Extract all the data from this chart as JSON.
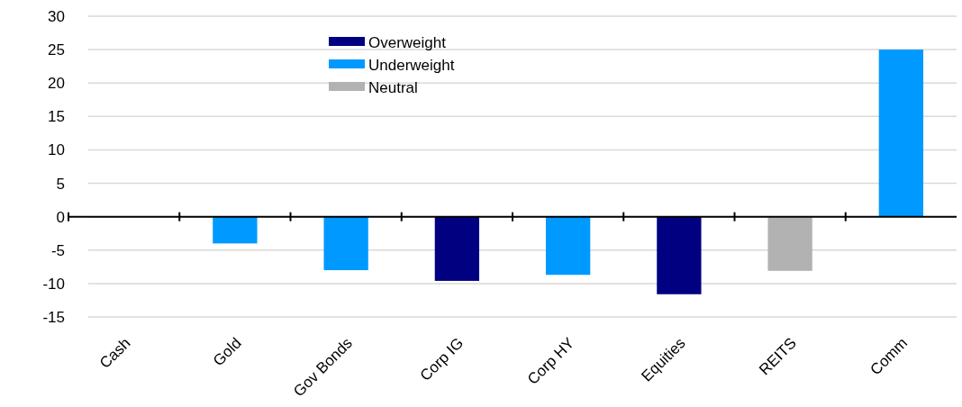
{
  "chart_data": {
    "type": "bar",
    "categories": [
      "Cash",
      "Gold",
      "Gov Bonds",
      "Corp IG",
      "Corp HY",
      "Equities",
      "REITS",
      "Comm"
    ],
    "series": [
      {
        "name": "Overweight",
        "color": "#000080",
        "values": [
          null,
          null,
          null,
          -9.6,
          null,
          -11.6,
          null,
          null
        ]
      },
      {
        "name": "Underweight",
        "color": "#0099ff",
        "values": [
          null,
          -4,
          -8,
          null,
          -8.7,
          null,
          null,
          25
        ]
      },
      {
        "name": "Neutral",
        "color": "#b2b2b2",
        "values": [
          0,
          null,
          null,
          null,
          null,
          null,
          -8.1,
          null
        ]
      }
    ],
    "ylim": [
      -15,
      30
    ],
    "yticks": [
      -15,
      -10,
      -5,
      0,
      5,
      10,
      15,
      20,
      25,
      30
    ],
    "grid": "y",
    "legend": "top"
  }
}
